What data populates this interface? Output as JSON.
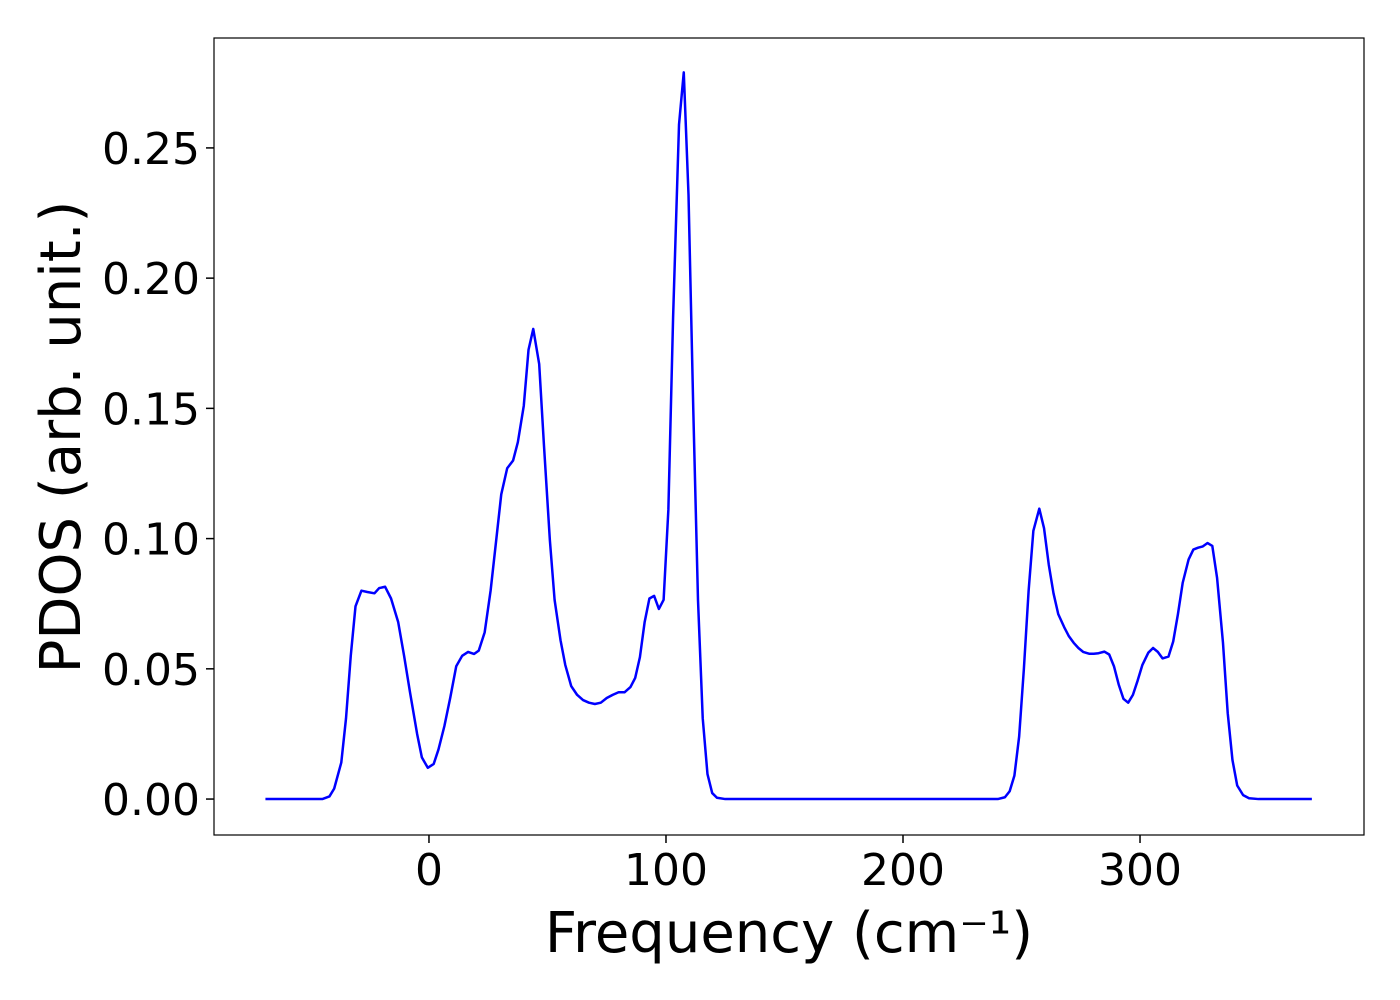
{
  "chart_data": {
    "type": "line",
    "xlabel": "Frequency (cm⁻¹)",
    "ylabel": "PDOS (arb. unit.)",
    "xlim": [
      -90.7,
      394.5
    ],
    "ylim": [
      -0.0138,
      0.2922
    ],
    "xticks": [
      0,
      100,
      200,
      300
    ],
    "yticks": [
      {
        "value": 0,
        "label": "0.00"
      },
      {
        "value": 0.05,
        "label": "0.05"
      },
      {
        "value": 0.1,
        "label": "0.10"
      },
      {
        "value": 0.15,
        "label": "0.15"
      },
      {
        "value": 0.2,
        "label": "0.20"
      },
      {
        "value": 0.25,
        "label": "0.25"
      }
    ],
    "grid": false,
    "series": [
      {
        "color": "#0000ff",
        "x": [
          -69,
          -55,
          -45,
          -42,
          -40,
          -37,
          -35,
          -33,
          -31,
          -28.5,
          -26,
          -23,
          -21,
          -18.5,
          -16,
          -13,
          -10.5,
          -8,
          -5,
          -3,
          -0.5,
          2,
          4,
          6.5,
          9,
          11.5,
          14,
          16.5,
          19,
          21,
          23.5,
          26,
          28.5,
          30.5,
          33,
          35.5,
          37.5,
          40,
          42,
          44,
          46.5,
          48.5,
          51,
          53,
          55.5,
          57.5,
          60,
          62.5,
          65,
          67.5,
          70,
          72.5,
          75,
          77.5,
          80,
          82.5,
          85,
          87,
          89,
          91,
          93,
          95,
          97,
          99,
          101,
          103,
          105.5,
          107.5,
          109.5,
          111.5,
          113.5,
          115.5,
          117.5,
          119.5,
          121.5,
          125,
          180,
          240,
          243,
          245,
          247,
          249,
          251,
          253,
          255,
          257.5,
          259.5,
          261.5,
          263.5,
          265.5,
          268,
          270,
          272,
          274,
          276,
          278.5,
          280.5,
          282.5,
          285,
          287,
          289,
          291,
          293,
          295,
          297,
          299,
          301,
          303.5,
          305.5,
          307.5,
          309.5,
          312,
          314,
          316,
          318,
          320.5,
          322.5,
          324.5,
          326.5,
          328.5,
          330.5,
          332.5,
          335,
          337,
          339,
          341,
          343.5,
          346,
          350,
          372.5
        ],
        "values": [
          0,
          0,
          0,
          0.001,
          0.004,
          0.014,
          0.031,
          0.055,
          0.074,
          0.08,
          0.0795,
          0.079,
          0.081,
          0.0815,
          0.077,
          0.068,
          0.055,
          0.041,
          0.025,
          0.016,
          0.012,
          0.0135,
          0.019,
          0.028,
          0.039,
          0.051,
          0.055,
          0.0565,
          0.0557,
          0.057,
          0.064,
          0.08,
          0.1005,
          0.117,
          0.127,
          0.13,
          0.137,
          0.151,
          0.1725,
          0.1805,
          0.167,
          0.136,
          0.0995,
          0.0765,
          0.061,
          0.0515,
          0.0434,
          0.04,
          0.038,
          0.037,
          0.0365,
          0.037,
          0.0388,
          0.04,
          0.041,
          0.041,
          0.043,
          0.0465,
          0.0545,
          0.068,
          0.077,
          0.078,
          0.073,
          0.0765,
          0.111,
          0.185,
          0.259,
          0.279,
          0.232,
          0.15,
          0.0765,
          0.031,
          0.0096,
          0.0023,
          0.0005,
          0,
          0,
          0,
          0.0007,
          0.003,
          0.009,
          0.024,
          0.05,
          0.08,
          0.103,
          0.1115,
          0.104,
          0.09,
          0.079,
          0.071,
          0.066,
          0.0625,
          0.06,
          0.058,
          0.0565,
          0.0558,
          0.0558,
          0.056,
          0.0566,
          0.0555,
          0.051,
          0.044,
          0.0385,
          0.037,
          0.04,
          0.0455,
          0.0515,
          0.0562,
          0.058,
          0.0565,
          0.054,
          0.0547,
          0.0605,
          0.071,
          0.083,
          0.092,
          0.0958,
          0.0965,
          0.097,
          0.0983,
          0.0972,
          0.085,
          0.06,
          0.033,
          0.015,
          0.0052,
          0.0015,
          0.0003,
          0,
          0
        ]
      }
    ]
  }
}
